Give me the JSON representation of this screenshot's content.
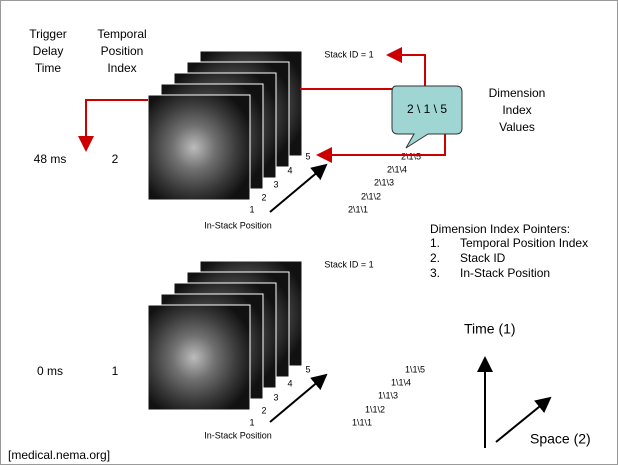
{
  "header": {
    "trigger_delay_time": [
      "Trigger",
      "Delay",
      "Time"
    ],
    "temporal_position_index": [
      "Temporal",
      "Position",
      "Index"
    ]
  },
  "stacks": [
    {
      "stack_id": "Stack ID = 1",
      "trigger_time": "48 ms",
      "temporal_index": "2",
      "positions": [
        "1",
        "2",
        "3",
        "4",
        "5"
      ],
      "index_values": [
        "2\\1\\1",
        "2\\1\\2",
        "2\\1\\3",
        "2\\1\\4",
        "2\\1\\5"
      ],
      "axis_label": "In-Stack Position"
    },
    {
      "stack_id": "Stack ID = 1",
      "trigger_time": "0 ms",
      "temporal_index": "1",
      "positions": [
        "1",
        "2",
        "3",
        "4",
        "5"
      ],
      "index_values": [
        "1\\1\\1",
        "1\\1\\2",
        "1\\1\\3",
        "1\\1\\4",
        "1\\1\\5"
      ],
      "axis_label": "In-Stack Position"
    }
  ],
  "bubble": {
    "text": "2 \\ 1 \\ 5",
    "caption": [
      "Dimension",
      "Index",
      "Values"
    ]
  },
  "pointers": {
    "title": "Dimension Index Pointers:",
    "items": [
      {
        "num": "1.",
        "text": "Temporal Position Index"
      },
      {
        "num": "2.",
        "text": "Stack ID"
      },
      {
        "num": "3.",
        "text": "In-Stack Position"
      }
    ]
  },
  "axes": {
    "time": "Time (1)",
    "space": "Space (2)"
  },
  "source": "[medical.nema.org]"
}
